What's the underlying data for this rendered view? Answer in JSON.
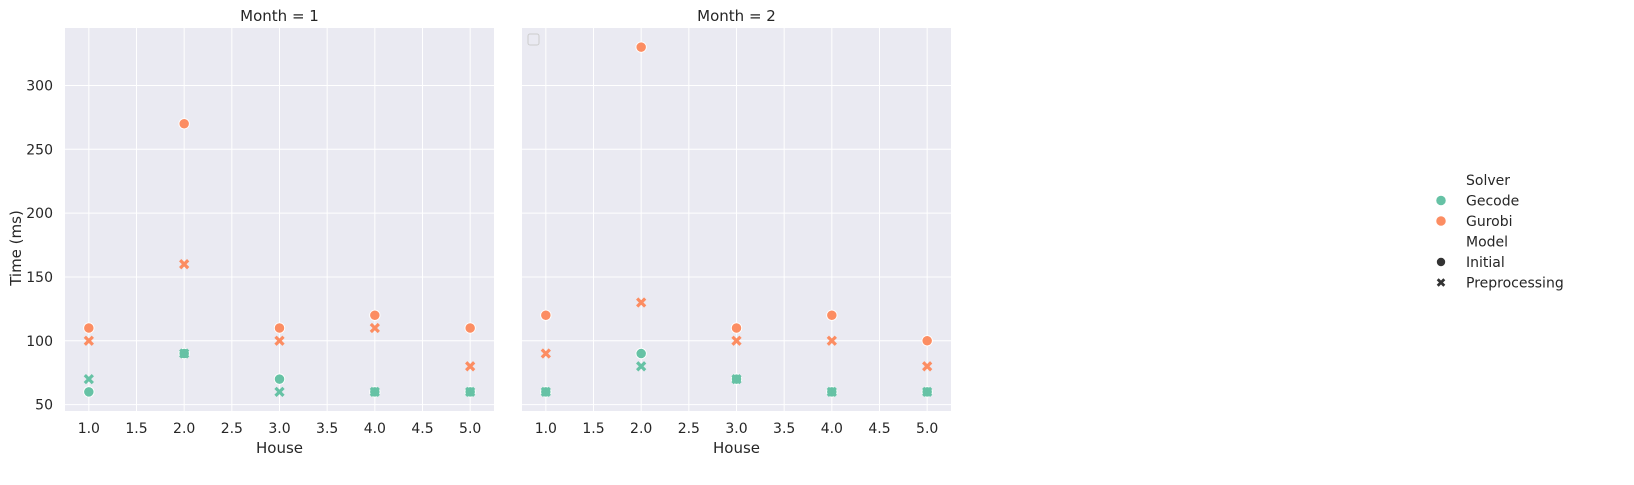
{
  "chart_data": {
    "type": "scatter",
    "grid": true,
    "xlim": [
      0.75,
      5.25
    ],
    "ylim": [
      45,
      345
    ],
    "x_ticks": [
      "1.0",
      "1.5",
      "2.0",
      "2.5",
      "3.0",
      "3.5",
      "4.0",
      "4.5",
      "5.0"
    ],
    "y_ticks": [
      "50",
      "100",
      "150",
      "200",
      "250",
      "300"
    ],
    "xlabel": "House",
    "ylabel": "Time (ms)",
    "colors": {
      "Gecode": "#66c2a5",
      "Gurobi": "#fc8d62"
    },
    "legend": {
      "placement": "right",
      "hue_title": "Solver",
      "hue_items": [
        "Gecode",
        "Gurobi"
      ],
      "style_title": "Model",
      "style_items": [
        "Initial",
        "Preprocessing"
      ],
      "style_markers": {
        "Initial": "circle",
        "Preprocessing": "x"
      }
    },
    "panels": [
      {
        "title": "Month = 1",
        "series": [
          {
            "solver": "Gecode",
            "model": "Initial",
            "x": [
              1,
              2,
              3,
              4,
              5
            ],
            "y": [
              60,
              90,
              70,
              60,
              60
            ]
          },
          {
            "solver": "Gecode",
            "model": "Preprocessing",
            "x": [
              1,
              2,
              3,
              4,
              5
            ],
            "y": [
              70,
              90,
              60,
              60,
              60
            ]
          },
          {
            "solver": "Gurobi",
            "model": "Initial",
            "x": [
              1,
              2,
              3,
              4,
              5
            ],
            "y": [
              110,
              270,
              110,
              120,
              110
            ]
          },
          {
            "solver": "Gurobi",
            "model": "Preprocessing",
            "x": [
              1,
              2,
              3,
              4,
              5
            ],
            "y": [
              100,
              160,
              100,
              110,
              80
            ]
          }
        ]
      },
      {
        "title": "Month = 2",
        "series": [
          {
            "solver": "Gecode",
            "model": "Initial",
            "x": [
              1,
              2,
              3,
              4,
              5
            ],
            "y": [
              60,
              90,
              70,
              60,
              60
            ]
          },
          {
            "solver": "Gecode",
            "model": "Preprocessing",
            "x": [
              1,
              2,
              3,
              4,
              5
            ],
            "y": [
              60,
              80,
              70,
              60,
              60
            ]
          },
          {
            "solver": "Gurobi",
            "model": "Initial",
            "x": [
              1,
              2,
              3,
              4,
              5
            ],
            "y": [
              120,
              330,
              110,
              120,
              100
            ]
          },
          {
            "solver": "Gurobi",
            "model": "Preprocessing",
            "x": [
              1,
              2,
              3,
              4,
              5
            ],
            "y": [
              90,
              130,
              100,
              100,
              80
            ]
          }
        ]
      }
    ]
  }
}
